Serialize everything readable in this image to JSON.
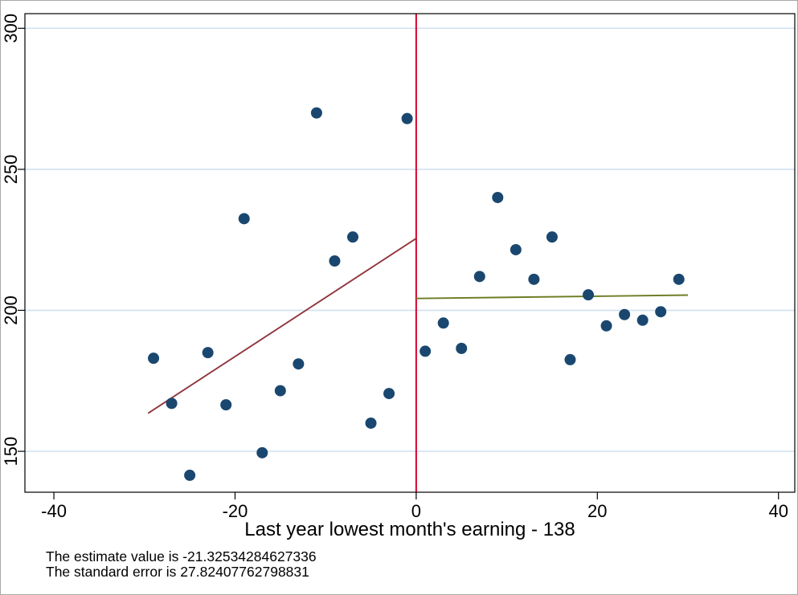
{
  "chart_data": {
    "type": "scatter",
    "title": "",
    "xlabel": "Last year lowest month's earning - 138",
    "ylabel": "",
    "xlim": [
      -43.2,
      41.8
    ],
    "ylim": [
      135.5,
      305.2
    ],
    "x_ticks": [
      {
        "v": -40,
        "label": "-40"
      },
      {
        "v": -20,
        "label": "-20"
      },
      {
        "v": 0,
        "label": "0"
      },
      {
        "v": 20,
        "label": "20"
      },
      {
        "v": 40,
        "label": "40"
      }
    ],
    "y_ticks": [
      {
        "v": 150,
        "label": "150"
      },
      {
        "v": 200,
        "label": "200"
      },
      {
        "v": 250,
        "label": "250"
      },
      {
        "v": 300,
        "label": "300"
      }
    ],
    "grid": "horizontal",
    "points": [
      [
        -29,
        183
      ],
      [
        -27,
        167
      ],
      [
        -25,
        141.5
      ],
      [
        -23,
        185
      ],
      [
        -21,
        166.5
      ],
      [
        -19,
        232.5
      ],
      [
        -17,
        149.5
      ],
      [
        -15,
        171.5
      ],
      [
        -13,
        181
      ],
      [
        -11,
        270
      ],
      [
        -9,
        217.5
      ],
      [
        -7,
        226
      ],
      [
        -5,
        160
      ],
      [
        -3,
        170.5
      ],
      [
        -1,
        268
      ],
      [
        1,
        185.5
      ],
      [
        3,
        195.5
      ],
      [
        5,
        186.5
      ],
      [
        7,
        212
      ],
      [
        9,
        240
      ],
      [
        11,
        221.5
      ],
      [
        13,
        211
      ],
      [
        15,
        226
      ],
      [
        17,
        182.5
      ],
      [
        19,
        205.5
      ],
      [
        21,
        194.5
      ],
      [
        23,
        198.5
      ],
      [
        25,
        196.5
      ],
      [
        27,
        199.5
      ],
      [
        29,
        211
      ]
    ],
    "cutoff_line": {
      "x": 0,
      "color": "#dc143c"
    },
    "fit_lines": [
      {
        "name": "left-fit-line",
        "color": "#90353b",
        "x1": -29.6,
        "y1": 163.5,
        "x2": 0,
        "y2": 225.5
      },
      {
        "name": "right-fit-line",
        "color": "#6b7d23",
        "x1": 0,
        "y1": 204.2,
        "x2": 30,
        "y2": 205.4
      }
    ],
    "colors": {
      "point": "#1a476f",
      "grid": "#d3e3ef",
      "axis": "#000000",
      "text": "#000000",
      "background": "#ffffff"
    },
    "notes": [
      "The estimate value is -21.32534284627336",
      "The standard error is 27.82407762798831"
    ]
  }
}
